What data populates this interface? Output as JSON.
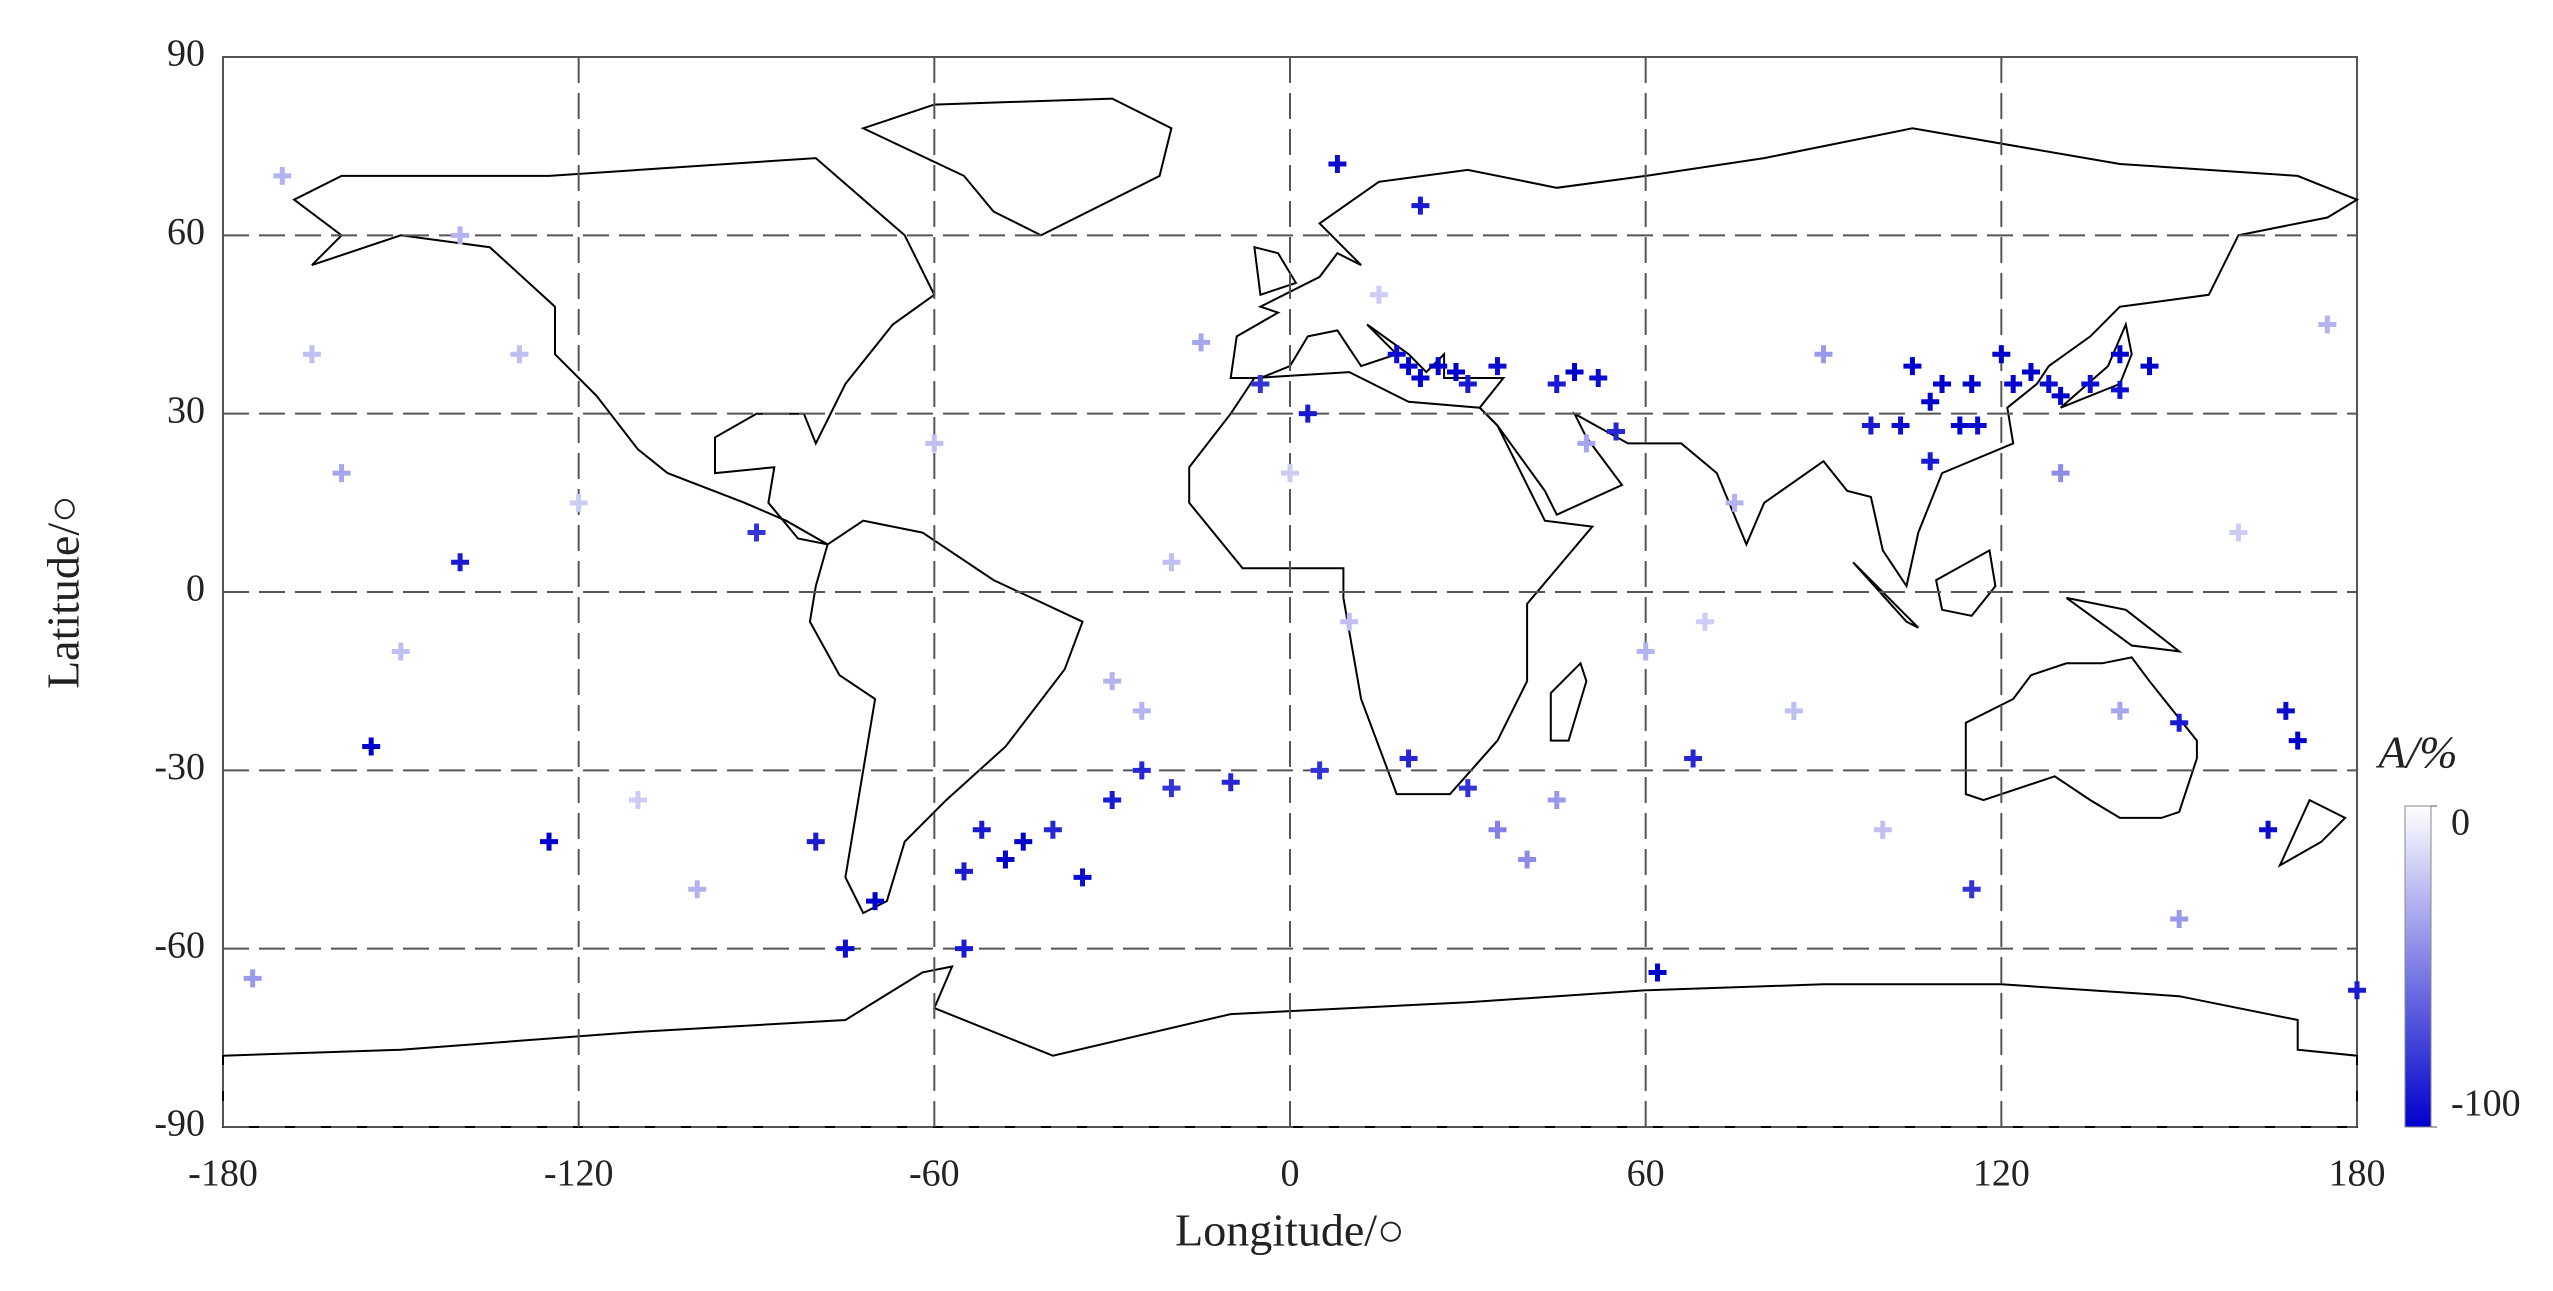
{
  "chart_data": {
    "type": "map",
    "xlabel": "Longitude/○",
    "ylabel": "Latitude/○",
    "xlim": [
      -180,
      180
    ],
    "xticks": [
      -180,
      -120,
      -60,
      0,
      60,
      120,
      180
    ],
    "ylim": [
      -90,
      90
    ],
    "yticks": [
      -90,
      -60,
      -30,
      0,
      30,
      60,
      90
    ],
    "grid": true,
    "colorbar": {
      "label": "A/%",
      "lim": [
        -100,
        0
      ],
      "ticks": [
        0,
        -100
      ],
      "colors": [
        "#ffffff",
        "#0000cc"
      ]
    },
    "lon": [
      20,
      22,
      25,
      18,
      28,
      30,
      35,
      45,
      48,
      52,
      3,
      -5,
      105,
      108,
      110,
      115,
      120,
      122,
      125,
      128,
      130,
      135,
      140,
      145,
      140,
      98,
      103,
      108,
      113,
      116,
      55,
      -45,
      -48,
      -52,
      -40,
      -30,
      -25,
      -20,
      -10,
      5,
      -35,
      -55,
      -70,
      -75,
      -55,
      -80,
      -155,
      -125,
      -140,
      -90,
      168,
      170,
      165,
      150,
      62,
      180,
      8,
      22,
      20,
      30,
      68,
      115,
      -160,
      -150,
      -170,
      -110,
      -100,
      -130,
      -175,
      -140,
      -120,
      -60,
      -30,
      -20,
      0,
      10,
      40,
      50,
      75,
      85,
      90,
      140,
      150,
      160,
      175,
      -15,
      -25,
      45,
      70,
      100,
      -165,
      35,
      15,
      60,
      130
    ],
    "lat": [
      38,
      36,
      38,
      40,
      37,
      35,
      38,
      35,
      37,
      36,
      30,
      35,
      38,
      32,
      35,
      35,
      40,
      35,
      37,
      35,
      33,
      35,
      40,
      38,
      34,
      28,
      28,
      22,
      28,
      28,
      27,
      -42,
      -45,
      -40,
      -40,
      -35,
      -30,
      -33,
      -32,
      -30,
      -48,
      -47,
      -52,
      -60,
      -60,
      -42,
      -26,
      -42,
      5,
      10,
      -20,
      -25,
      -40,
      -22,
      -64,
      -67,
      72,
      65,
      -28,
      -33,
      -28,
      -50,
      20,
      -10,
      70,
      -35,
      -50,
      40,
      -65,
      60,
      15,
      25,
      -15,
      5,
      20,
      -5,
      -45,
      25,
      15,
      -20,
      40,
      -20,
      -55,
      10,
      45,
      42,
      -20,
      -35,
      -5,
      -40,
      40,
      -40,
      50,
      -10,
      20
    ],
    "values": [
      -100,
      -100,
      -100,
      -95,
      -100,
      -90,
      -95,
      -90,
      -100,
      -95,
      -90,
      -80,
      -100,
      -100,
      -100,
      -100,
      -100,
      -100,
      -100,
      -95,
      -100,
      -95,
      -100,
      -100,
      -95,
      -90,
      -95,
      -90,
      -100,
      -95,
      -85,
      -100,
      -100,
      -90,
      -85,
      -90,
      -85,
      -80,
      -85,
      -80,
      -95,
      -90,
      -100,
      -95,
      -90,
      -90,
      -100,
      -100,
      -90,
      -80,
      -95,
      -100,
      -95,
      -90,
      -100,
      -90,
      -95,
      -90,
      -85,
      -80,
      -85,
      -80,
      -35,
      -25,
      -30,
      -20,
      -30,
      -25,
      -40,
      -30,
      -20,
      -25,
      -30,
      -25,
      -20,
      -25,
      -45,
      -35,
      -30,
      -25,
      -40,
      -35,
      -40,
      -20,
      -30,
      -35,
      -30,
      -40,
      -20,
      -25,
      -25,
      -50,
      -20,
      -30,
      -45
    ]
  }
}
